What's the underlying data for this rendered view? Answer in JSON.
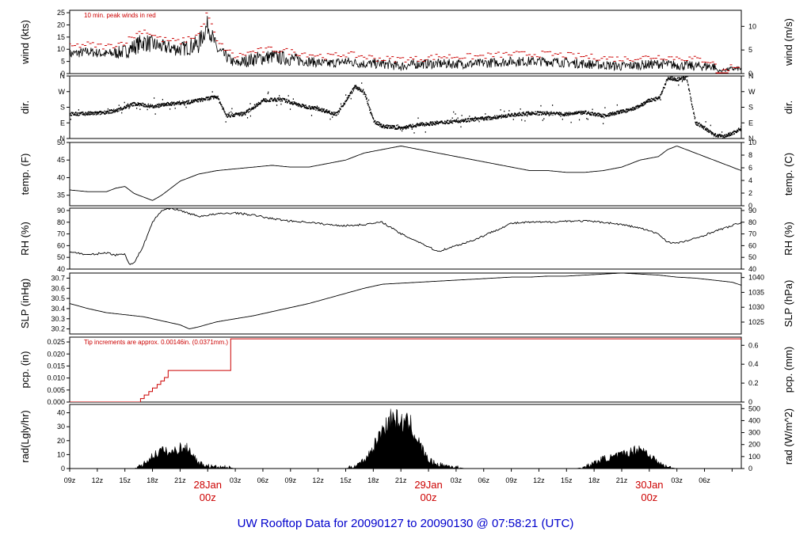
{
  "footer": {
    "title": "UW Rooftop Data for 20090127  to  20090130 @ 07:58:21  (UTC)"
  },
  "chart_data": [
    {
      "type": "line",
      "left_ylabel": "wind (kts)",
      "right_ylabel": "wind (m/s)",
      "left_ylim": [
        0,
        26
      ],
      "right_ylim": [
        0,
        13.4
      ],
      "left_ticks": [
        0,
        5,
        10,
        15,
        20,
        25
      ],
      "right_ticks": [
        0,
        5,
        10
      ],
      "annotation": "10 min. peak winds in red",
      "series": [
        {
          "color": "#000000",
          "style": "noisy",
          "x": [
            0,
            2,
            4,
            6,
            8,
            10,
            12,
            14,
            15,
            16,
            18,
            20,
            22,
            24,
            26,
            28,
            30,
            32,
            34,
            36,
            38,
            40,
            44,
            48,
            52,
            56,
            60,
            64,
            68,
            70,
            70.5,
            72,
            73
          ],
          "values": [
            8,
            9,
            8,
            9,
            13,
            11,
            10,
            12,
            20,
            10,
            4,
            6,
            7,
            6,
            5,
            4,
            5,
            4,
            4,
            3,
            4,
            4,
            4,
            5,
            5,
            4,
            3,
            4,
            3,
            3,
            1,
            2,
            2
          ],
          "amplitude": [
            2,
            2,
            2,
            3,
            4,
            3,
            3,
            4,
            4,
            3,
            2,
            3,
            3,
            3,
            2,
            2,
            2,
            2,
            2,
            2,
            2,
            2,
            2,
            2,
            2,
            2,
            2,
            2,
            2,
            2,
            0.5,
            1,
            1
          ]
        },
        {
          "color": "#cc0000",
          "style": "peaks",
          "x": [
            0,
            2,
            4,
            6,
            8,
            10,
            12,
            14,
            15,
            16,
            18,
            20,
            22,
            24,
            26,
            28,
            30,
            32,
            34,
            36,
            38,
            40,
            44,
            48,
            52,
            56,
            60,
            64,
            68,
            70,
            70.5,
            72,
            73
          ],
          "values": [
            11,
            12,
            11,
            13,
            18,
            14,
            13,
            16,
            25,
            13,
            7,
            9,
            10,
            9,
            8,
            7,
            8,
            7,
            6,
            6,
            6,
            7,
            7,
            8,
            8,
            7,
            6,
            7,
            6,
            5,
            0,
            3,
            3
          ]
        }
      ]
    },
    {
      "type": "scatter",
      "left_ylabel": "dir.",
      "right_ylabel": "dir.",
      "left_ylim": [
        0,
        360
      ],
      "right_ylim": [
        0,
        360
      ],
      "left_tick_values": [
        0,
        90,
        180,
        270,
        360
      ],
      "left_tick_labels": [
        "N",
        "E",
        "S",
        "W",
        "N"
      ],
      "right_tick_values": [
        0,
        90,
        180,
        270,
        360
      ],
      "right_tick_labels": [
        "N",
        "E",
        "S",
        "W",
        "N"
      ],
      "series": [
        {
          "color": "#000000",
          "x": [
            0,
            3,
            5,
            7,
            9,
            11,
            13,
            15,
            16,
            17,
            19,
            21,
            23,
            25,
            27,
            29,
            31,
            32,
            33,
            34,
            36,
            38,
            40,
            42,
            44,
            46,
            48,
            50,
            52,
            54,
            56,
            58,
            60,
            61,
            62,
            63,
            64,
            65,
            66,
            67,
            68,
            69,
            70,
            71,
            72,
            73
          ],
          "values": [
            140,
            145,
            160,
            200,
            185,
            200,
            210,
            230,
            240,
            130,
            145,
            220,
            225,
            190,
            170,
            140,
            300,
            260,
            100,
            70,
            60,
            80,
            90,
            100,
            110,
            120,
            135,
            145,
            145,
            140,
            150,
            130,
            155,
            165,
            190,
            220,
            230,
            350,
            340,
            350,
            90,
            60,
            20,
            10,
            30,
            60
          ],
          "spread": 10
        }
      ]
    },
    {
      "type": "line",
      "left_ylabel": "temp. (F)",
      "right_ylabel": "temp. (C)",
      "left_ylim": [
        32,
        50
      ],
      "right_ylim": [
        0,
        10
      ],
      "left_ticks": [
        35,
        40,
        45,
        50
      ],
      "right_ticks": [
        0,
        2,
        4,
        6,
        8,
        10
      ],
      "series": [
        {
          "color": "#000000",
          "x": [
            0,
            2,
            4,
            5,
            6,
            7,
            8,
            9,
            10,
            11,
            12,
            14,
            16,
            18,
            20,
            22,
            24,
            26,
            28,
            30,
            32,
            34,
            36,
            38,
            40,
            42,
            44,
            46,
            48,
            50,
            52,
            54,
            56,
            58,
            60,
            62,
            64,
            65,
            66,
            68,
            70,
            72,
            73
          ],
          "values": [
            36.5,
            36,
            36,
            37,
            37.5,
            35.5,
            34.5,
            33.5,
            35,
            37,
            39,
            41,
            42,
            42.5,
            43,
            43.5,
            43,
            43,
            44,
            45,
            47,
            48,
            49,
            48,
            47,
            46,
            45,
            44,
            43,
            42,
            42,
            41.5,
            41.5,
            42,
            43,
            45,
            46,
            48,
            49,
            47,
            45,
            43,
            42
          ]
        }
      ]
    },
    {
      "type": "line",
      "left_ylabel": "RH (%)",
      "right_ylabel": "RH (%)",
      "left_ylim": [
        40,
        92
      ],
      "right_ylim": [
        40,
        92
      ],
      "left_ticks": [
        40,
        50,
        60,
        70,
        80,
        90
      ],
      "right_ticks": [
        40,
        50,
        60,
        70,
        80,
        90
      ],
      "series": [
        {
          "color": "#000000",
          "x": [
            0,
            2,
            4,
            5,
            6,
            6.5,
            7,
            8,
            9,
            10,
            11,
            12,
            14,
            16,
            18,
            20,
            22,
            24,
            26,
            28,
            30,
            32,
            34,
            36,
            38,
            40,
            42,
            44,
            46,
            48,
            50,
            52,
            54,
            56,
            58,
            60,
            62,
            64,
            65,
            66,
            68,
            70,
            72,
            73
          ],
          "values": [
            55,
            52,
            54,
            52,
            53,
            44,
            45,
            60,
            80,
            90,
            92,
            90,
            85,
            87,
            88,
            86,
            83,
            81,
            80,
            78,
            77,
            78,
            80,
            70,
            63,
            55,
            60,
            65,
            72,
            79,
            80,
            80,
            81,
            81,
            80,
            78,
            75,
            70,
            63,
            62,
            66,
            72,
            77,
            80
          ],
          "noise": 0.8
        }
      ]
    },
    {
      "type": "line",
      "left_ylabel": "SLP (inHg)",
      "right_ylabel": "SLP (hPa)",
      "left_ylim": [
        30.15,
        30.75
      ],
      "right_ylim": [
        1021,
        1041.5
      ],
      "left_ticks": [
        30.2,
        30.3,
        30.4,
        30.5,
        30.6,
        30.7
      ],
      "right_ticks": [
        1025,
        1030,
        1035,
        1040
      ],
      "series": [
        {
          "color": "#000000",
          "x": [
            0,
            2,
            4,
            6,
            8,
            10,
            12,
            13,
            14,
            16,
            18,
            20,
            22,
            24,
            26,
            28,
            30,
            32,
            34,
            36,
            38,
            40,
            42,
            44,
            46,
            48,
            50,
            52,
            54,
            56,
            58,
            60,
            62,
            64,
            66,
            68,
            70,
            72,
            73
          ],
          "values": [
            30.45,
            30.4,
            30.36,
            30.34,
            30.32,
            30.28,
            30.24,
            30.2,
            30.22,
            30.27,
            30.3,
            30.33,
            30.37,
            30.41,
            30.45,
            30.5,
            30.55,
            30.6,
            30.64,
            30.65,
            30.66,
            30.67,
            30.68,
            30.69,
            30.7,
            30.71,
            30.71,
            30.72,
            30.72,
            30.73,
            30.74,
            30.75,
            30.74,
            30.73,
            30.71,
            30.7,
            30.68,
            30.66,
            30.63
          ]
        }
      ]
    },
    {
      "type": "line",
      "left_ylabel": "pcp. (in)",
      "right_ylabel": "pcp. (mm)",
      "left_ylim": [
        0,
        0.027
      ],
      "right_ylim": [
        0,
        0.686
      ],
      "left_ticks": [
        0.0,
        0.005,
        0.01,
        0.015,
        0.02,
        0.025
      ],
      "left_tick_labels": [
        "0.000",
        "0.005",
        "0.010",
        "0.015",
        "0.020",
        "0.025"
      ],
      "right_ticks": [
        0,
        0.2,
        0.4,
        0.6
      ],
      "annotation": "Tip increments are approx. 0.00146in. (0.0371mm.)",
      "series": [
        {
          "color": "#cc0000",
          "style": "step",
          "x": [
            0,
            7.7,
            8.1,
            8.6,
            9.0,
            9.5,
            9.9,
            10.3,
            10.7,
            17.2,
            17.5,
            73
          ],
          "values": [
            0.0,
            0.00146,
            0.00292,
            0.00438,
            0.00584,
            0.0073,
            0.00876,
            0.01022,
            0.01314,
            0.01314,
            0.0263,
            0.0263
          ]
        }
      ]
    },
    {
      "type": "area",
      "left_ylabel": "rad(Lgly/hr)",
      "right_ylabel": "rad (W/m^2)",
      "left_ylim": [
        0,
        46
      ],
      "right_ylim": [
        0,
        535
      ],
      "left_ticks": [
        0,
        10,
        20,
        30,
        40
      ],
      "right_ticks": [
        0,
        100,
        200,
        300,
        400,
        500
      ],
      "series": [
        {
          "color": "#000000",
          "x": [
            0,
            7,
            7.5,
            8,
            9,
            10,
            11,
            12,
            13,
            14,
            15,
            16,
            17,
            18,
            30,
            31,
            32,
            33,
            34,
            35,
            36,
            37,
            38,
            39,
            40,
            41,
            42,
            43,
            55,
            56,
            57,
            58,
            59,
            60,
            61,
            62,
            63,
            64,
            65,
            66,
            73
          ],
          "values": [
            0,
            0,
            1,
            3,
            9,
            13,
            11,
            15,
            14,
            4,
            2,
            1,
            1,
            0,
            0,
            2,
            6,
            15,
            28,
            37,
            33,
            32,
            18,
            6,
            3,
            2,
            1,
            0,
            0,
            1,
            4,
            7,
            8,
            10,
            12,
            15,
            10,
            4,
            1,
            0,
            0
          ],
          "noise": 4
        }
      ]
    }
  ],
  "x_axis": {
    "range": [
      0,
      73
    ],
    "tick_positions": [
      0,
      3,
      6,
      9,
      12,
      15,
      18,
      21,
      24,
      27,
      30,
      33,
      36,
      39,
      42,
      45,
      48,
      51,
      54,
      57,
      60,
      63,
      66,
      69,
      72
    ],
    "tick_labels": [
      "09z",
      "12z",
      "15z",
      "18z",
      "21z",
      "",
      "03z",
      "06z",
      "09z",
      "12z",
      "15z",
      "18z",
      "21z",
      "",
      "03z",
      "06z",
      "09z",
      "12z",
      "15z",
      "18z",
      "21z",
      "",
      "03z",
      "06z",
      ""
    ],
    "day_labels": [
      {
        "x": -24,
        "date": "Jan",
        "time": "z"
      },
      {
        "x": 15,
        "date": "28Jan",
        "time": "00z"
      },
      {
        "x": 39,
        "date": "29Jan",
        "time": "00z"
      },
      {
        "x": 63,
        "date": "30Jan",
        "time": "00z"
      }
    ]
  }
}
